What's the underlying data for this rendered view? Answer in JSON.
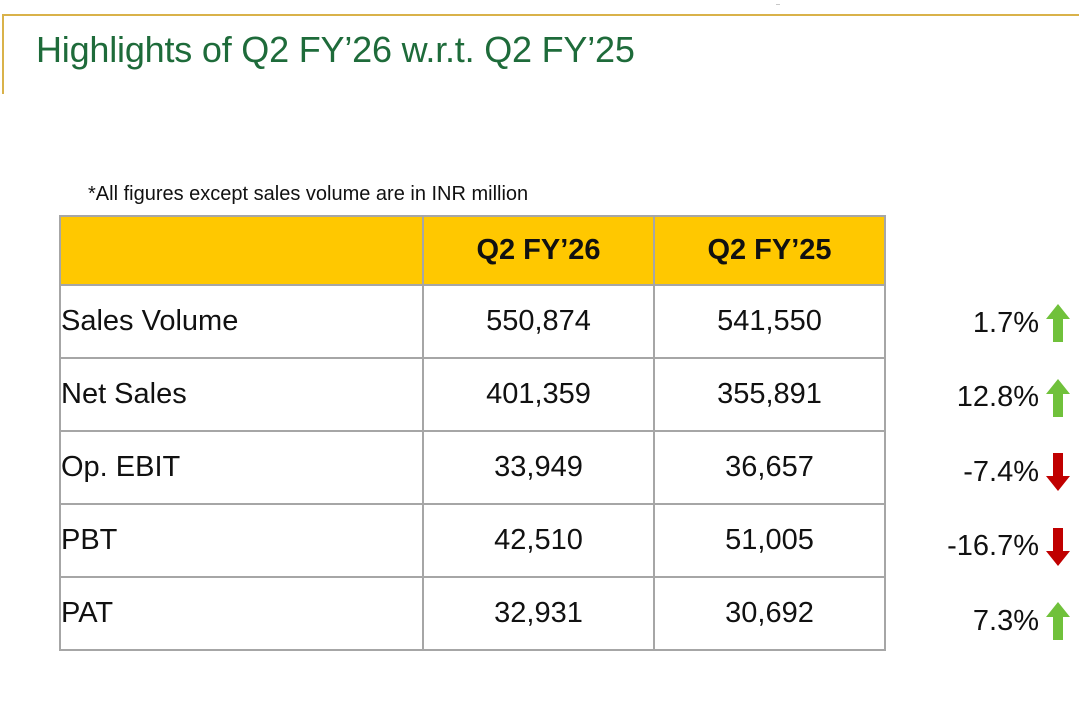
{
  "slide": {
    "title": "Highlights of Q2 FY’26 w.r.t. Q2 FY’25",
    "note": "*All figures except sales volume are in INR million"
  },
  "table": {
    "headers": [
      "",
      "Q2 FY’26",
      "Q2 FY’25"
    ],
    "rows": [
      {
        "label": "Sales Volume",
        "q2fy26": "550,874",
        "q2fy25": "541,550",
        "change": "1.7%",
        "direction": "up"
      },
      {
        "label": "Net Sales",
        "q2fy26": "401,359",
        "q2fy25": "355,891",
        "change": "12.8%",
        "direction": "up"
      },
      {
        "label": "Op. EBIT",
        "q2fy26": "33,949",
        "q2fy25": "36,657",
        "change": "-7.4%",
        "direction": "down"
      },
      {
        "label": "PBT",
        "q2fy26": "42,510",
        "q2fy25": "51,005",
        "change": "-16.7%",
        "direction": "down"
      },
      {
        "label": "PAT",
        "q2fy26": "32,931",
        "q2fy25": "30,692",
        "change": "7.3%",
        "direction": "up"
      }
    ]
  },
  "colors": {
    "title": "#1e6b3a",
    "header_fill": "#ffc800",
    "up_arrow": "#70c13b",
    "down_arrow": "#c00000",
    "accent_rule": "#d9b24a"
  },
  "icons": {
    "up": "arrow-up-icon",
    "down": "arrow-down-icon"
  }
}
